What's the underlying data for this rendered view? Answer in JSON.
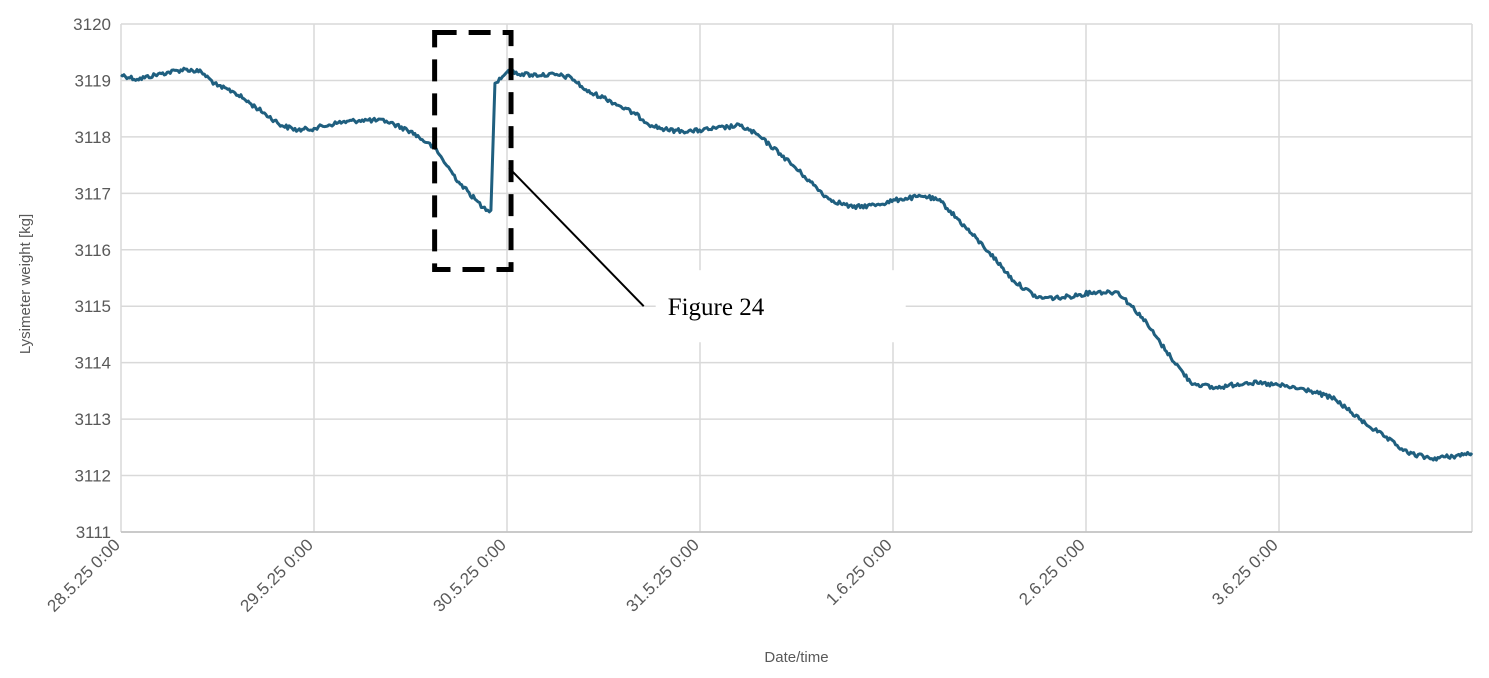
{
  "chart_data": {
    "type": "line",
    "title": "",
    "xlabel": "Date/time",
    "ylabel": "Lysimeter weight [kg]",
    "x_unit": "days",
    "x_ticks": [
      "28.5.25 0:00",
      "29.5.25 0:00",
      "30.5.25 0:00",
      "31.5.25 0:00",
      "1.6.25 0:00",
      "2.6.25 0:00",
      "3.6.25 0:00"
    ],
    "y_ticks": [
      3111,
      3112,
      3113,
      3114,
      3115,
      3116,
      3117,
      3118,
      3119,
      3120
    ],
    "ylim": [
      3111,
      3120
    ],
    "xlim": [
      "28.5.25 0:00",
      "4.6.25 0:00"
    ],
    "grid": true,
    "legend": "none",
    "series": [
      {
        "color": "#1f5f7f",
        "points": [
          [
            "28.5.25 0:00",
            3119.1
          ],
          [
            "28.5.25 2:00",
            3119.02
          ],
          [
            "28.5.25 5:00",
            3119.12
          ],
          [
            "28.5.25 8:00",
            3119.2
          ],
          [
            "28.5.25 10:00",
            3119.15
          ],
          [
            "28.5.25 12:00",
            3118.9
          ],
          [
            "28.5.25 14:00",
            3118.8
          ],
          [
            "28.5.25 16:00",
            3118.6
          ],
          [
            "28.5.25 18:00",
            3118.4
          ],
          [
            "28.5.25 20:00",
            3118.2
          ],
          [
            "28.5.25 22:00",
            3118.12
          ],
          [
            "29.5.25 0:00",
            3118.15
          ],
          [
            "29.5.25 3:00",
            3118.25
          ],
          [
            "29.5.25 6:00",
            3118.3
          ],
          [
            "29.5.25 9:00",
            3118.28
          ],
          [
            "29.5.25 12:00",
            3118.1
          ],
          [
            "29.5.25 14:00",
            3117.9
          ],
          [
            "29.5.25 15:00",
            3117.8
          ],
          [
            "29.5.25 16:00",
            3117.6
          ],
          [
            "29.5.25 18:00",
            3117.2
          ],
          [
            "29.5.25 20:00",
            3116.9
          ],
          [
            "29.5.25 21:00",
            3116.75
          ],
          [
            "29.5.25 22:00",
            3116.7
          ],
          [
            "29.5.25 22:30",
            3118.95
          ],
          [
            "30.5.25 0:00",
            3119.15
          ],
          [
            "30.5.25 3:00",
            3119.1
          ],
          [
            "30.5.25 6:00",
            3119.1
          ],
          [
            "30.5.25 8:00",
            3119.05
          ],
          [
            "30.5.25 10:00",
            3118.8
          ],
          [
            "30.5.25 12:00",
            3118.7
          ],
          [
            "30.5.25 14:00",
            3118.55
          ],
          [
            "30.5.25 16:00",
            3118.4
          ],
          [
            "30.5.25 18:00",
            3118.2
          ],
          [
            "30.5.25 20:00",
            3118.12
          ],
          [
            "30.5.25 23:00",
            3118.1
          ],
          [
            "31.5.25 2:00",
            3118.15
          ],
          [
            "31.5.25 5:00",
            3118.2
          ],
          [
            "31.5.25 7:00",
            3118.05
          ],
          [
            "31.5.25 10:00",
            3117.7
          ],
          [
            "31.5.25 13:00",
            3117.3
          ],
          [
            "31.5.25 16:00",
            3116.9
          ],
          [
            "31.5.25 19:00",
            3116.75
          ],
          [
            "31.5.25 22:00",
            3116.8
          ],
          [
            "1.6.25 1:00",
            3116.9
          ],
          [
            "1.6.25 4:00",
            3116.95
          ],
          [
            "1.6.25 6:00",
            3116.85
          ],
          [
            "1.6.25 9:00",
            3116.4
          ],
          [
            "1.6.25 12:00",
            3115.95
          ],
          [
            "1.6.25 15:00",
            3115.45
          ],
          [
            "1.6.25 18:00",
            3115.15
          ],
          [
            "1.6.25 21:00",
            3115.15
          ],
          [
            "2.6.25 1:00",
            3115.25
          ],
          [
            "2.6.25 4:00",
            3115.25
          ],
          [
            "2.6.25 7:00",
            3114.8
          ],
          [
            "2.6.25 10:00",
            3114.2
          ],
          [
            "2.6.25 13:00",
            3113.65
          ],
          [
            "2.6.25 16:00",
            3113.55
          ],
          [
            "2.6.25 20:00",
            3113.65
          ],
          [
            "3.6.25 0:00",
            3113.6
          ],
          [
            "3.6.25 4:00",
            3113.5
          ],
          [
            "3.6.25 7:00",
            3113.35
          ],
          [
            "3.6.25 10:00",
            3113.0
          ],
          [
            "3.6.25 13:00",
            3112.7
          ],
          [
            "3.6.25 16:00",
            3112.4
          ],
          [
            "3.6.25 19:00",
            3112.3
          ],
          [
            "3.6.25 22:00",
            3112.35
          ],
          [
            "4.6.25 0:00",
            3112.4
          ]
        ]
      }
    ],
    "annotations": [
      {
        "type": "box",
        "x_range": [
          "29.5.25 15:00",
          "30.5.25 0:30"
        ],
        "y_range": [
          3115.65,
          3119.85
        ],
        "style": "dashed"
      },
      {
        "type": "callout",
        "label": "Figure 24",
        "from": [
          "30.5.25 0:15",
          3117.45
        ],
        "to": [
          "30.5.25 17:00",
          3115.0
        ]
      }
    ]
  }
}
